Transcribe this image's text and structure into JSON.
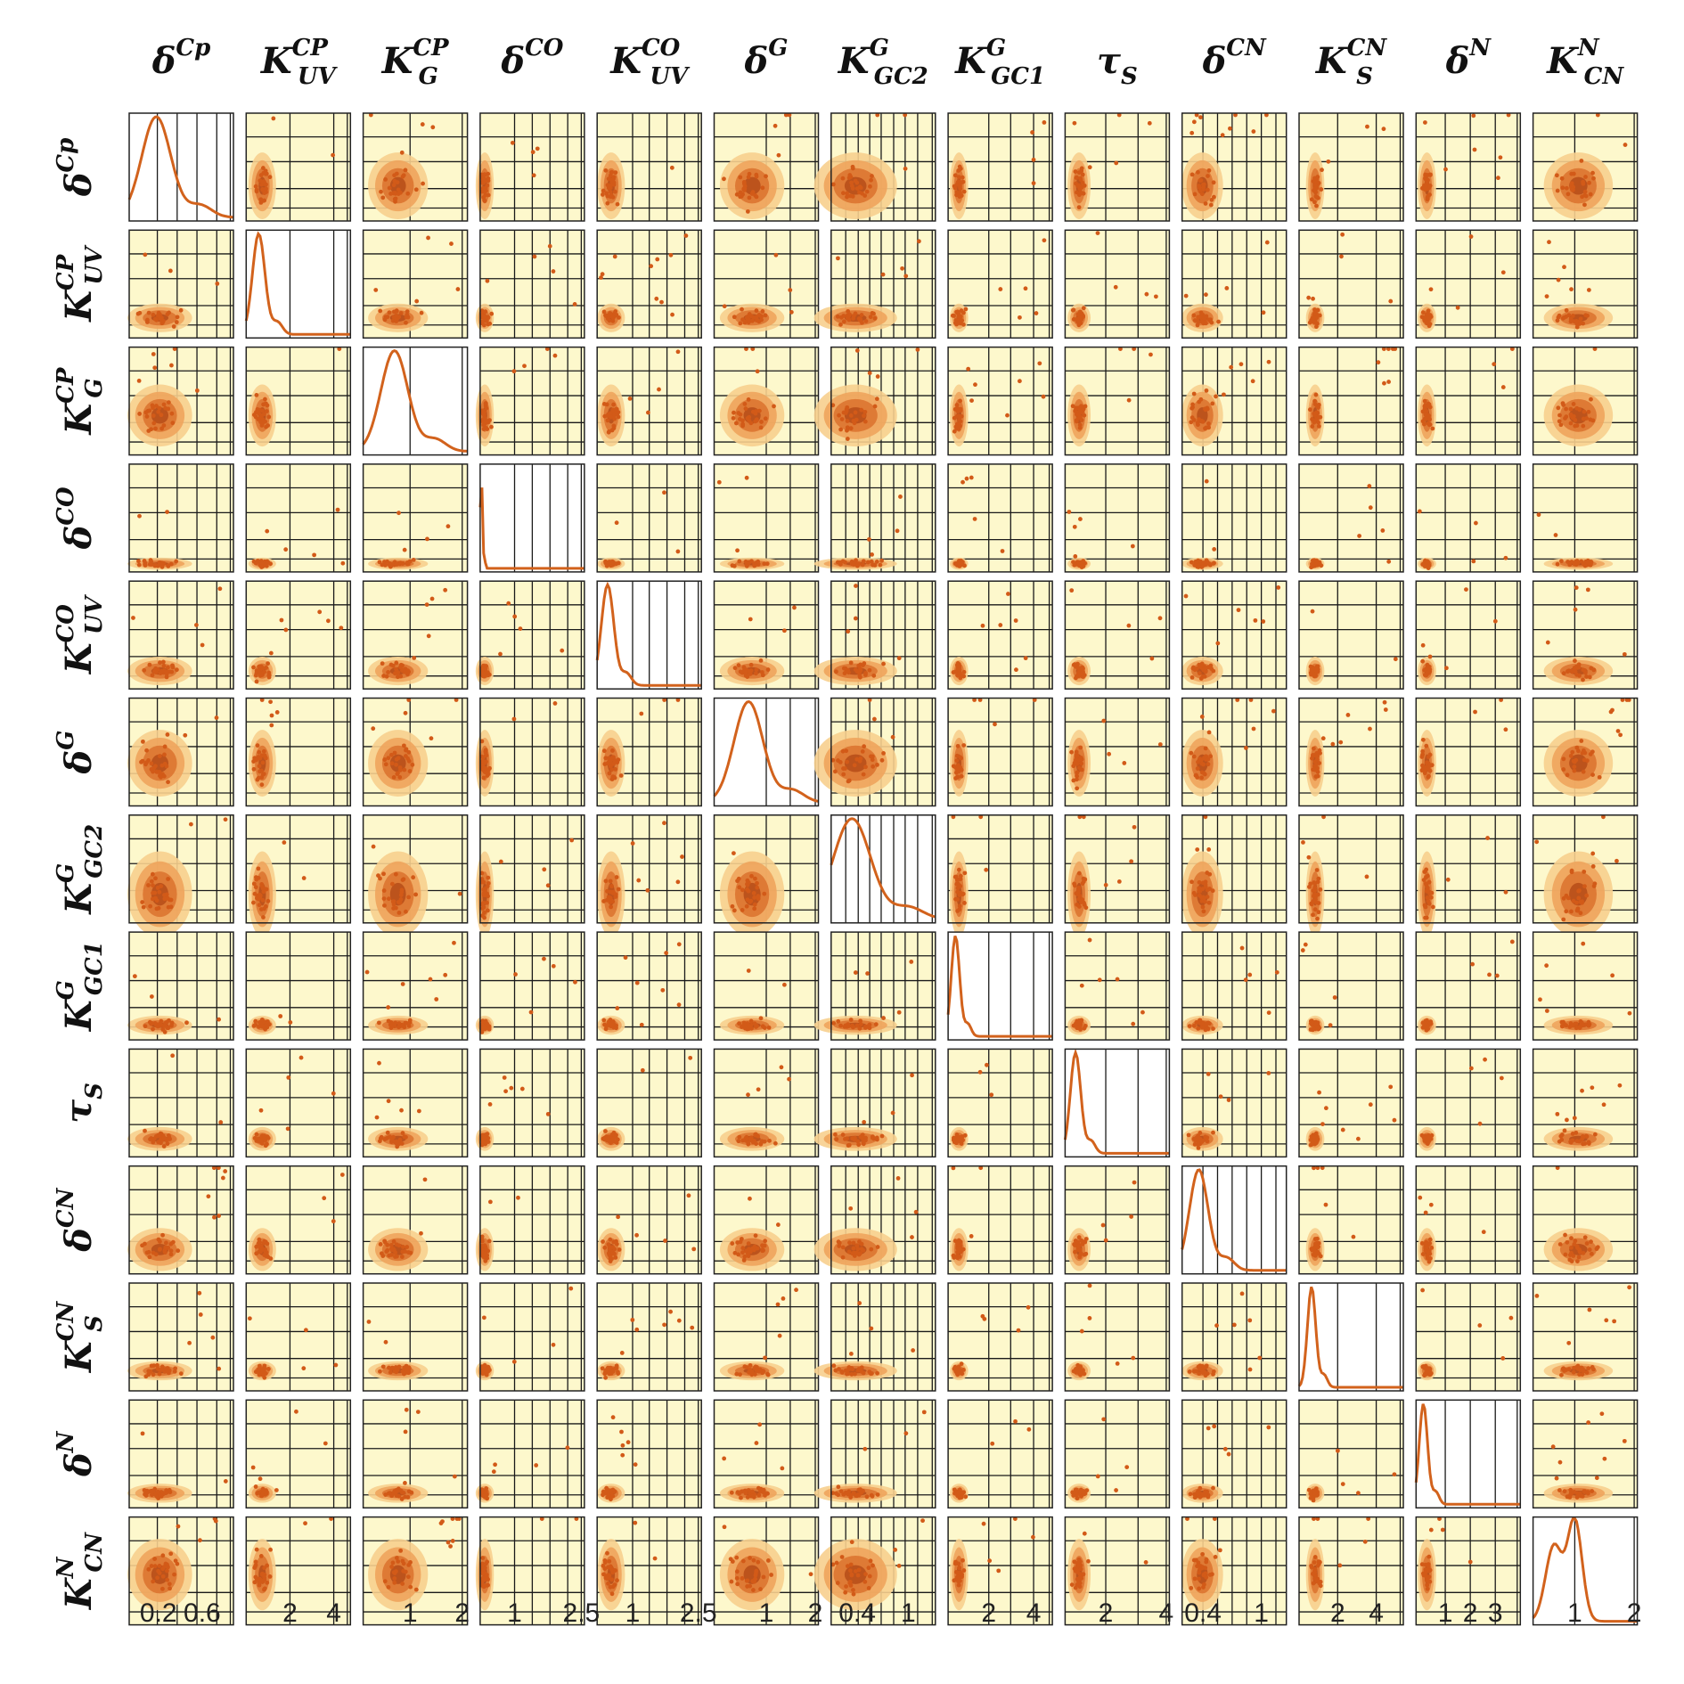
{
  "chart_data": {
    "type": "scatter-matrix",
    "title": "",
    "variables": [
      {
        "base": "δ",
        "sup": "Cp",
        "sub": ""
      },
      {
        "base": "K",
        "sup": "CP",
        "sub": "UV"
      },
      {
        "base": "K",
        "sup": "CP",
        "sub": "G"
      },
      {
        "base": "δ",
        "sup": "CO",
        "sub": ""
      },
      {
        "base": "K",
        "sup": "CO",
        "sub": "UV"
      },
      {
        "base": "δ",
        "sup": "G",
        "sub": ""
      },
      {
        "base": "K",
        "sup": "G",
        "sub": "GC2"
      },
      {
        "base": "K",
        "sup": "G",
        "sub": "GC1"
      },
      {
        "base": "τ",
        "sup": "",
        "sub": "S"
      },
      {
        "base": "δ",
        "sup": "CN",
        "sub": ""
      },
      {
        "base": "K",
        "sup": "CN",
        "sub": "S"
      },
      {
        "base": "δ",
        "sup": "N",
        "sub": ""
      },
      {
        "base": "K",
        "sup": "N",
        "sub": "CN"
      }
    ],
    "x_ticks": [
      [
        "0.2",
        "0.6"
      ],
      [
        "2",
        "4"
      ],
      [
        "1",
        "2"
      ],
      [
        "1",
        "2.5"
      ],
      [
        "1",
        "2.5"
      ],
      [
        "1",
        "2"
      ],
      [
        "0.4",
        "1"
      ],
      [
        "2",
        "4"
      ],
      [
        "2",
        "4"
      ],
      [
        "0.4",
        "1"
      ],
      [
        "2",
        "4"
      ],
      [
        "1",
        "2",
        "3"
      ],
      [
        "1",
        "2"
      ]
    ],
    "diagonal": "kernel density curve",
    "off_diagonal": "scatter points with filled density contours",
    "grid": true,
    "colors": {
      "panel_bg": "#fdf8cc",
      "curve": "#d2621c",
      "contour_light": "#f7cf8e",
      "contour_mid": "#eea45c",
      "contour_dark": "#db7431",
      "contour_core": "#b84f1a",
      "points": "#d25a18",
      "grid": "#1a1a1a"
    }
  }
}
